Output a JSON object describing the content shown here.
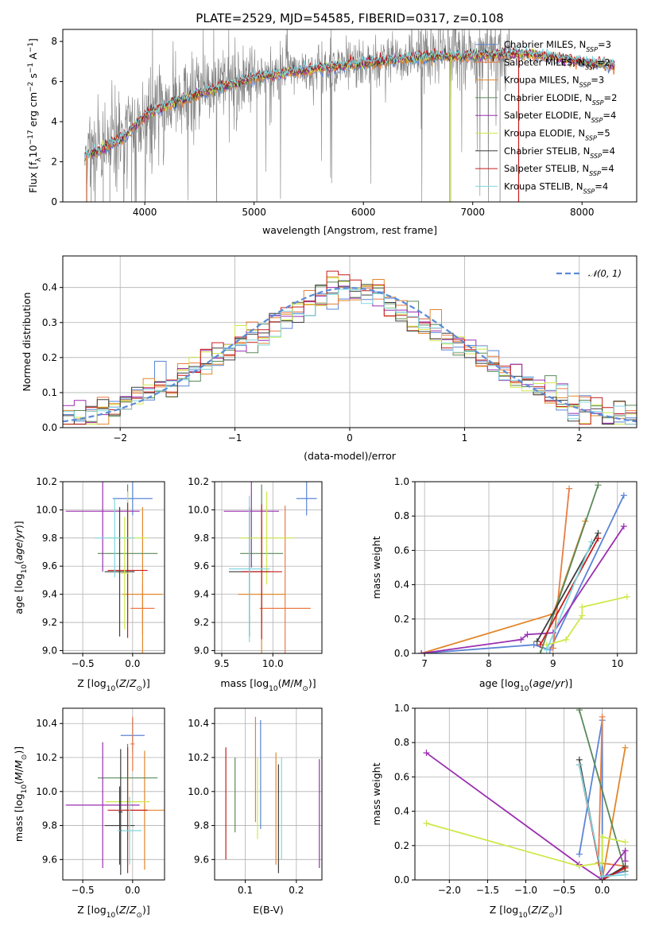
{
  "figure": {
    "title": "PLATE=2529, MJD=54585, FIBERID=0317, z=0.108"
  },
  "models": [
    {
      "name": "Chabrier MILES",
      "nssp": "3",
      "color": "#5b84d6"
    },
    {
      "name": "Salpeter MILES",
      "nssp": "2",
      "color": "#e97c44"
    },
    {
      "name": "Kroupa MILES",
      "nssp": "3",
      "color": "#e2872b"
    },
    {
      "name": "Chabrier ELODIE",
      "nssp": "2",
      "color": "#5a8a5a"
    },
    {
      "name": "Salpeter ELODIE",
      "nssp": "4",
      "color": "#9b2fb1"
    },
    {
      "name": "Kroupa ELODIE",
      "nssp": "5",
      "color": "#cfe84a"
    },
    {
      "name": "Chabrier STELIB",
      "nssp": "4",
      "color": "#3e3e3e"
    },
    {
      "name": "Salpeter STELIB",
      "nssp": "4",
      "color": "#c61c1c"
    },
    {
      "name": "Kroupa STELIB",
      "nssp": "4",
      "color": "#7fd7e0"
    }
  ],
  "legend_prefix_nssp": "N",
  "legend_sub_nssp": "SSP",
  "chart_data": [
    {
      "id": "spectrum",
      "type": "line",
      "xlabel": "wavelength [Angstrom, rest frame]",
      "ylabel_parts": [
        "Flux [f",
        "λ",
        "10",
        "−17",
        " erg cm",
        "−2",
        " s",
        "−1",
        " A",
        "−1",
        "]"
      ],
      "xlim": [
        3250,
        8500
      ],
      "ylim": [
        0,
        8.6
      ],
      "xticks": [
        4000,
        5000,
        6000,
        7000,
        8000
      ],
      "yticks": [
        0,
        2,
        4,
        6,
        8
      ],
      "data_color": "#808080",
      "data_range": [
        3450,
        7350
      ],
      "model_range": [
        3450,
        8300
      ],
      "continuum_anchors": [
        [
          3450,
          2.3
        ],
        [
          3600,
          2.6
        ],
        [
          3800,
          3.2
        ],
        [
          4000,
          4.3
        ],
        [
          4200,
          4.8
        ],
        [
          4500,
          5.4
        ],
        [
          5000,
          6.2
        ],
        [
          5500,
          6.6
        ],
        [
          6000,
          6.9
        ],
        [
          6500,
          7.2
        ],
        [
          7000,
          7.3
        ],
        [
          7500,
          7.4
        ],
        [
          8000,
          7.0
        ],
        [
          8300,
          6.8
        ]
      ],
      "grid": false,
      "legend_position": "upper right"
    },
    {
      "id": "residuals",
      "type": "histogram",
      "xlabel": "(data-model)/error",
      "ylabel": "Normed distribution",
      "xlim": [
        -2.5,
        2.5
      ],
      "ylim": [
        0,
        0.49
      ],
      "xticks": [
        -2,
        -1,
        0,
        1,
        2
      ],
      "xtick_labels": [
        "−2",
        "−1",
        "0",
        "1",
        "2"
      ],
      "yticks": [
        0.0,
        0.1,
        0.2,
        0.3,
        0.4
      ],
      "ytick_labels": [
        "0.0",
        "0.1",
        "0.2",
        "0.3",
        "0.4"
      ],
      "bins": [
        -2.5,
        2.5,
        50
      ],
      "reference": {
        "label": "𝒩(0, 1)",
        "color": "#5b8bd6",
        "style": "dashed"
      },
      "grid": true,
      "legend_position": "upper right"
    },
    {
      "id": "age-vs-Z",
      "type": "errorbar",
      "xlabel": "Z [log10(Z/Z⊙)]",
      "ylabel": "age  [log10(age/yr)]",
      "xlim": [
        -0.7,
        0.32
      ],
      "ylim": [
        8.98,
        10.2
      ],
      "xticks": [
        -0.5,
        0.0
      ],
      "xtick_labels": [
        "−0.5",
        "0.0"
      ],
      "yticks": [
        9.0,
        9.2,
        9.4,
        9.6,
        9.8,
        10.0,
        10.2
      ],
      "ytick_labels": [
        "9.0",
        "9.2",
        "9.4",
        "9.6",
        "9.8",
        "10.0",
        "10.2"
      ],
      "points": [
        {
          "model": 0,
          "x": 0.0,
          "xerr": 0.2,
          "y": 10.08,
          "yerr": 0.12
        },
        {
          "model": 1,
          "x": 0.1,
          "xerr": 0.12,
          "y": 9.3,
          "yerr": 0.18
        },
        {
          "model": 2,
          "x": 0.1,
          "xerr": 0.2,
          "y": 9.4,
          "yerr": 0.62
        },
        {
          "model": 3,
          "x": -0.05,
          "xerr": 0.3,
          "y": 9.69,
          "yerr": 0.49
        },
        {
          "model": 4,
          "x": -0.3,
          "xerr": 0.37,
          "y": 9.99,
          "yerr": 0.43
        },
        {
          "model": 5,
          "x": -0.05,
          "xerr": 0.2,
          "y": 9.8,
          "yerr": 0.33
        },
        {
          "model": 6,
          "x": -0.13,
          "xerr": 0.15,
          "y": 9.56,
          "yerr": 0.46
        },
        {
          "model": 7,
          "x": -0.05,
          "xerr": 0.2,
          "y": 9.57,
          "yerr": 0.48
        },
        {
          "model": 8,
          "x": -0.18,
          "xerr": 0.2,
          "y": 9.8,
          "yerr": 0.28
        },
        {
          "model": 5,
          "x": -0.08,
          "xerr": 0.04,
          "y": 9.55,
          "yerr": 0.4
        }
      ],
      "grid": true
    },
    {
      "id": "age-vs-mass",
      "type": "errorbar",
      "xlabel": "mass [log10(M/M⊙)]",
      "ylabel": "",
      "xlim": [
        9.43,
        10.48
      ],
      "ylim": [
        8.98,
        10.2
      ],
      "xticks": [
        9.5,
        10.0
      ],
      "xtick_labels": [
        "9.5",
        "10.0"
      ],
      "yticks": [
        9.0,
        9.2,
        9.4,
        9.6,
        9.8,
        10.0,
        10.2
      ],
      "ytick_labels": [
        "9.0",
        "9.2",
        "9.4",
        "9.6",
        "9.8",
        "10.0",
        "10.2"
      ],
      "points": [
        {
          "model": 0,
          "x": 10.33,
          "xerr": 0.1,
          "y": 10.08,
          "yerr": 0.12
        },
        {
          "model": 1,
          "x": 10.12,
          "xerr": 0.25,
          "y": 9.3,
          "yerr": 0.73
        },
        {
          "model": 2,
          "x": 9.89,
          "xerr": 0.23,
          "y": 9.4,
          "yerr": 0.52
        },
        {
          "model": 3,
          "x": 9.89,
          "xerr": 0.21,
          "y": 9.69,
          "yerr": 0.49
        },
        {
          "model": 4,
          "x": 9.79,
          "xerr": 0.27,
          "y": 9.99,
          "yerr": 0.4
        },
        {
          "model": 5,
          "x": 9.94,
          "xerr": 0.26,
          "y": 9.8,
          "yerr": 0.33
        },
        {
          "model": 6,
          "x": 9.77,
          "xerr": 0.2,
          "y": 9.56,
          "yerr": 0.46
        },
        {
          "model": 7,
          "x": 9.89,
          "xerr": 0.2,
          "y": 9.56,
          "yerr": 0.48
        },
        {
          "model": 8,
          "x": 9.77,
          "xerr": 0.2,
          "y": 9.58,
          "yerr": 0.52
        }
      ],
      "grid": true
    },
    {
      "id": "weight-vs-age",
      "type": "line",
      "xlabel": "age  [log10(age/yr)]",
      "ylabel": "mass weight",
      "xlim": [
        6.85,
        10.3
      ],
      "ylim": [
        0,
        1.0
      ],
      "xticks": [
        7,
        8,
        9,
        10
      ],
      "xtick_labels": [
        "7",
        "8",
        "9",
        "10"
      ],
      "yticks": [
        0.0,
        0.2,
        0.4,
        0.6,
        0.8,
        1.0
      ],
      "ytick_labels": [
        "0.0",
        "0.2",
        "0.4",
        "0.6",
        "0.8",
        "1.0"
      ],
      "series": [
        {
          "model": 0,
          "points": [
            [
              6.95,
              0.0
            ],
            [
              8.7,
              0.05
            ],
            [
              8.95,
              0.02
            ],
            [
              10.1,
              0.92
            ]
          ]
        },
        {
          "model": 1,
          "points": [
            [
              9.0,
              0.03
            ],
            [
              9.25,
              0.96
            ]
          ]
        },
        {
          "model": 2,
          "points": [
            [
              6.95,
              0.0
            ],
            [
              9.0,
              0.23
            ],
            [
              9.5,
              0.77
            ]
          ]
        },
        {
          "model": 3,
          "points": [
            [
              8.8,
              0.0
            ],
            [
              9.7,
              0.98
            ]
          ]
        },
        {
          "model": 4,
          "points": [
            [
              6.95,
              0.0
            ],
            [
              8.5,
              0.08
            ],
            [
              8.6,
              0.11
            ],
            [
              9.0,
              0.12
            ],
            [
              10.1,
              0.74
            ]
          ]
        },
        {
          "model": 5,
          "points": [
            [
              8.9,
              0.05
            ],
            [
              9.2,
              0.08
            ],
            [
              9.45,
              0.22
            ],
            [
              9.45,
              0.27
            ],
            [
              10.15,
              0.33
            ]
          ]
        },
        {
          "model": 6,
          "points": [
            [
              8.75,
              0.07
            ],
            [
              9.7,
              0.7
            ]
          ]
        },
        {
          "model": 7,
          "points": [
            [
              8.8,
              0.05
            ],
            [
              9.7,
              0.67
            ]
          ]
        },
        {
          "model": 8,
          "points": [
            [
              8.9,
              0.02
            ],
            [
              9.6,
              0.65
            ]
          ]
        }
      ],
      "grid": true
    },
    {
      "id": "mass-vs-Z",
      "type": "errorbar",
      "xlabel": "Z [log10(Z/Z⊙)]",
      "ylabel": "mass [log10(M/M⊙)]",
      "xlim": [
        -0.7,
        0.32
      ],
      "ylim": [
        9.48,
        10.49
      ],
      "xticks": [
        -0.5,
        0.0
      ],
      "xtick_labels": [
        "−0.5",
        "0.0"
      ],
      "yticks": [
        9.6,
        9.8,
        10.0,
        10.2,
        10.4
      ],
      "ytick_labels": [
        "9.6",
        "9.8",
        "10.0",
        "10.2",
        "10.4"
      ],
      "points": [
        {
          "model": 0,
          "x": 0.0,
          "xerr": 0.12,
          "y": 10.33,
          "yerr": 0.1
        },
        {
          "model": 1,
          "x": 0.0,
          "xerr": 0.02,
          "y": 10.28,
          "yerr": 0.16
        },
        {
          "model": 2,
          "x": 0.12,
          "xerr": 0.2,
          "y": 9.89,
          "yerr": 0.35
        },
        {
          "model": 3,
          "x": -0.05,
          "xerr": 0.3,
          "y": 10.08,
          "yerr": 0.2
        },
        {
          "model": 4,
          "x": -0.3,
          "xerr": 0.37,
          "y": 9.92,
          "yerr": 0.37
        },
        {
          "model": 5,
          "x": -0.05,
          "xerr": 0.22,
          "y": 9.94,
          "yerr": 0.23
        },
        {
          "model": 6,
          "x": -0.13,
          "xerr": 0.15,
          "y": 9.8,
          "yerr": 0.23
        },
        {
          "model": 7,
          "x": -0.05,
          "xerr": 0.2,
          "y": 9.89,
          "yerr": 0.37
        },
        {
          "model": 8,
          "x": -0.03,
          "xerr": 0.12,
          "y": 9.77,
          "yerr": 0.2
        },
        {
          "model": 6,
          "x": -0.12,
          "xerr": 0.02,
          "y": 9.88,
          "yerr": 0.37
        }
      ],
      "grid": true
    },
    {
      "id": "mass-vs-ebv",
      "type": "errorbar",
      "xlabel": "E(B-V)",
      "ylabel": "",
      "xlim": [
        0.04,
        0.25
      ],
      "ylim": [
        9.48,
        10.49
      ],
      "xticks": [
        0.1,
        0.2
      ],
      "xtick_labels": [
        "0.1",
        "0.2"
      ],
      "yticks": [
        9.6,
        9.8,
        10.0,
        10.2,
        10.4
      ],
      "ytick_labels": [
        "9.6",
        "9.8",
        "10.0",
        "10.2",
        "10.4"
      ],
      "points": [
        {
          "model": 0,
          "x": 0.13,
          "xerr": 0.0,
          "y": 10.1,
          "yerr": 0.32
        },
        {
          "model": 1,
          "x": 0.12,
          "xerr": 0.0,
          "y": 10.13,
          "yerr": 0.31
        },
        {
          "model": 2,
          "x": 0.16,
          "xerr": 0.0,
          "y": 9.9,
          "yerr": 0.33
        },
        {
          "model": 3,
          "x": 0.08,
          "xerr": 0.0,
          "y": 9.98,
          "yerr": 0.22
        },
        {
          "model": 4,
          "x": 0.245,
          "xerr": 0.0,
          "y": 9.87,
          "yerr": 0.32
        },
        {
          "model": 5,
          "x": 0.124,
          "xerr": 0.0,
          "y": 9.96,
          "yerr": 0.24
        },
        {
          "model": 6,
          "x": 0.165,
          "xerr": 0.0,
          "y": 9.84,
          "yerr": 0.32
        },
        {
          "model": 7,
          "x": 0.062,
          "xerr": 0.0,
          "y": 9.93,
          "yerr": 0.33
        },
        {
          "model": 8,
          "x": 0.171,
          "xerr": 0.0,
          "y": 9.9,
          "yerr": 0.3
        }
      ],
      "grid": true
    },
    {
      "id": "weight-vs-Z",
      "type": "line",
      "xlabel": "Z [log10(Z/Z⊙)]",
      "ylabel": "mass weight",
      "xlim": [
        -2.45,
        0.45
      ],
      "ylim": [
        0,
        1.0
      ],
      "xticks": [
        -2.0,
        -1.5,
        -1.0,
        -0.5,
        0.0
      ],
      "xtick_labels": [
        "−2.0",
        "−1.5",
        "−1.0",
        "−0.5",
        "0.0"
      ],
      "yticks": [
        0.0,
        0.2,
        0.4,
        0.6,
        0.8,
        1.0
      ],
      "ytick_labels": [
        "0.0",
        "0.2",
        "0.4",
        "0.6",
        "0.8",
        "1.0"
      ],
      "series": [
        {
          "model": 0,
          "points": [
            [
              -0.3,
              0.15
            ],
            [
              0.0,
              0.93
            ],
            [
              0.0,
              0.02
            ],
            [
              0.3,
              0.05
            ]
          ]
        },
        {
          "model": 1,
          "points": [
            [
              0.0,
              0.95
            ],
            [
              -0.05,
              0.1
            ],
            [
              0.3,
              0.08
            ]
          ]
        },
        {
          "model": 2,
          "points": [
            [
              0.0,
              0.0
            ],
            [
              0.3,
              0.77
            ]
          ]
        },
        {
          "model": 3,
          "points": [
            [
              -0.3,
              0.99
            ],
            [
              0.3,
              0.05
            ]
          ]
        },
        {
          "model": 4,
          "points": [
            [
              -2.3,
              0.74
            ],
            [
              -0.3,
              0.09
            ],
            [
              0.0,
              0.0
            ],
            [
              0.3,
              0.17
            ],
            [
              0.3,
              0.11
            ]
          ]
        },
        {
          "model": 5,
          "points": [
            [
              -2.3,
              0.33
            ],
            [
              -0.3,
              0.08
            ],
            [
              0.0,
              0.1
            ],
            [
              0.0,
              0.25
            ],
            [
              0.3,
              0.22
            ]
          ]
        },
        {
          "model": 6,
          "points": [
            [
              -0.3,
              0.7
            ],
            [
              0.0,
              0.0
            ],
            [
              0.3,
              0.08
            ]
          ]
        },
        {
          "model": 7,
          "points": [
            [
              -0.3,
              0.67
            ],
            [
              0.0,
              0.0
            ],
            [
              0.3,
              0.07
            ]
          ]
        },
        {
          "model": 8,
          "points": [
            [
              -0.3,
              0.67
            ],
            [
              0.0,
              0.02
            ],
            [
              0.3,
              0.03
            ]
          ]
        }
      ],
      "grid": true
    }
  ]
}
